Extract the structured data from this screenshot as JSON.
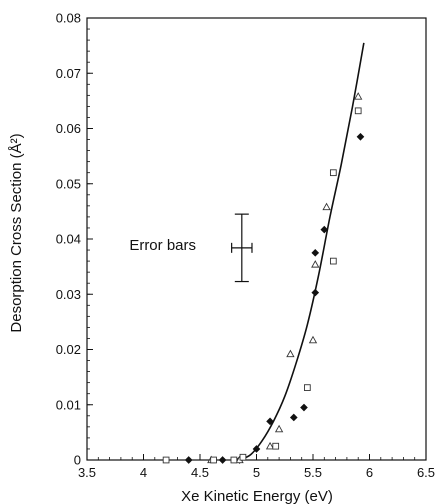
{
  "chart_data": {
    "type": "scatter",
    "xlabel": "Xe Kinetic Energy (eV)",
    "ylabel": "Desorption Cross Section (Å²)",
    "xlim": [
      3.5,
      6.5
    ],
    "ylim": [
      0,
      0.08
    ],
    "x_ticks": [
      3.5,
      4,
      4.5,
      5,
      5.5,
      6,
      6.5
    ],
    "x_tick_labels": [
      "3.5",
      "4",
      "4.5",
      "5",
      "5.5",
      "6",
      "6.5"
    ],
    "y_ticks": [
      0,
      0.01,
      0.02,
      0.03,
      0.04,
      0.05,
      0.06,
      0.07,
      0.08
    ],
    "y_tick_labels": [
      "0",
      "0.01",
      "0.02",
      "0.03",
      "0.04",
      "0.05",
      "0.06",
      "0.07",
      "0.08"
    ],
    "grid": false,
    "series": [
      {
        "marker": "diamond-filled",
        "points": [
          [
            4.4,
            0.0
          ],
          [
            4.7,
            0.0
          ],
          [
            4.85,
            0.0
          ],
          [
            5.0,
            0.002
          ],
          [
            5.12,
            0.007
          ],
          [
            5.33,
            0.0077
          ],
          [
            5.42,
            0.0095
          ],
          [
            5.52,
            0.0303
          ],
          [
            5.52,
            0.0375
          ],
          [
            5.6,
            0.0417
          ],
          [
            5.92,
            0.0585
          ]
        ]
      },
      {
        "marker": "triangle-open",
        "points": [
          [
            4.6,
            0.0
          ],
          [
            4.85,
            0.0
          ],
          [
            5.12,
            0.0025
          ],
          [
            5.2,
            0.0056
          ],
          [
            5.3,
            0.0192
          ],
          [
            5.5,
            0.0217
          ],
          [
            5.52,
            0.0354
          ],
          [
            5.62,
            0.0458
          ],
          [
            5.9,
            0.0658
          ]
        ]
      },
      {
        "marker": "square-open",
        "points": [
          [
            4.2,
            0.0
          ],
          [
            4.62,
            0.0
          ],
          [
            4.8,
            0.0
          ],
          [
            4.88,
            0.0005
          ],
          [
            5.17,
            0.0025
          ],
          [
            5.45,
            0.0131
          ],
          [
            5.68,
            0.036
          ],
          [
            5.68,
            0.052
          ],
          [
            5.9,
            0.0632
          ]
        ]
      }
    ],
    "fit_curve": {
      "style": "solid",
      "points": [
        [
          4.85,
          0.0
        ],
        [
          4.95,
          0.001
        ],
        [
          5.05,
          0.0035
        ],
        [
          5.15,
          0.007
        ],
        [
          5.25,
          0.0115
        ],
        [
          5.35,
          0.0175
        ],
        [
          5.45,
          0.0245
        ],
        [
          5.55,
          0.0335
        ],
        [
          5.65,
          0.044
        ],
        [
          5.75,
          0.0535
        ],
        [
          5.85,
          0.064
        ],
        [
          5.95,
          0.0755
        ]
      ]
    },
    "error_bar_legend": {
      "label": "Error bars",
      "center": [
        4.87,
        0.0384
      ],
      "x_half_width": 0.09,
      "y_half_width": 0.0061
    }
  }
}
